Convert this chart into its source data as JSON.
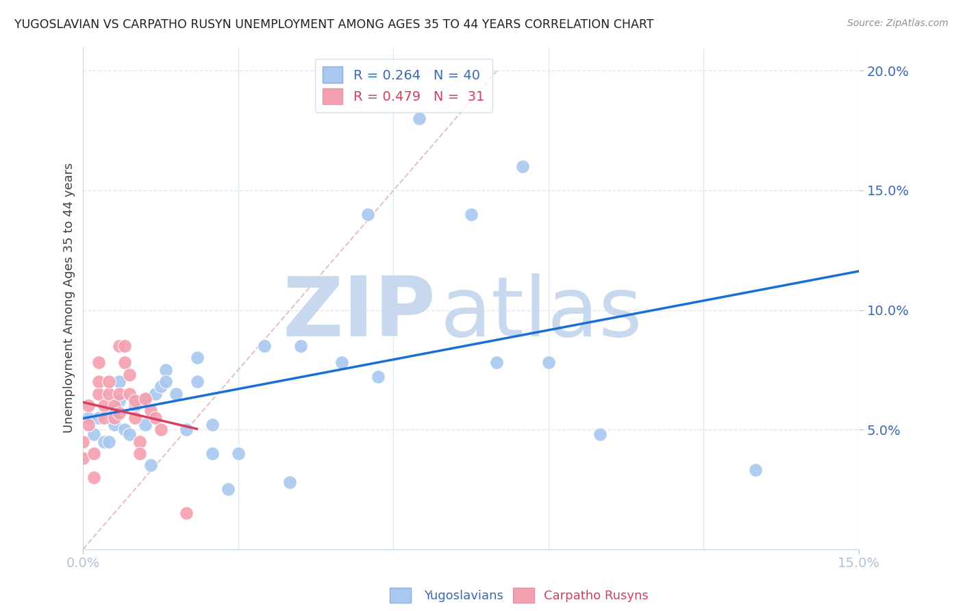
{
  "title": "YUGOSLAVIAN VS CARPATHO RUSYN UNEMPLOYMENT AMONG AGES 35 TO 44 YEARS CORRELATION CHART",
  "source": "Source: ZipAtlas.com",
  "xlabel_label": "Yugoslavians",
  "xlabel_label2": "Carpatho Rusyns",
  "ylabel": "Unemployment Among Ages 35 to 44 years",
  "xlim": [
    0.0,
    0.15
  ],
  "ylim": [
    0.0,
    0.21
  ],
  "xticks": [
    0.0,
    0.15
  ],
  "yticks": [
    0.05,
    0.1,
    0.15,
    0.2
  ],
  "ytick_labels": [
    "5.0%",
    "10.0%",
    "15.0%",
    "20.0%"
  ],
  "xtick_labels": [
    "0.0%",
    "15.0%"
  ],
  "blue_R": 0.264,
  "blue_N": 40,
  "pink_R": 0.479,
  "pink_N": 31,
  "blue_color": "#a8c8f0",
  "pink_color": "#f4a0b0",
  "trend_blue": "#1a6fd4",
  "trend_pink": "#d44060",
  "diag_color": "#e0b0bc",
  "watermark_zip_color": "#c8d8ee",
  "watermark_atlas_color": "#c8d8ee",
  "background_color": "#ffffff",
  "grid_color": "#dde8f0",
  "blue_scatter_x": [
    0.001,
    0.002,
    0.003,
    0.004,
    0.005,
    0.005,
    0.006,
    0.007,
    0.007,
    0.008,
    0.009,
    0.01,
    0.012,
    0.012,
    0.013,
    0.014,
    0.015,
    0.016,
    0.016,
    0.018,
    0.02,
    0.022,
    0.022,
    0.025,
    0.025,
    0.028,
    0.03,
    0.035,
    0.04,
    0.042,
    0.05,
    0.055,
    0.057,
    0.065,
    0.075,
    0.08,
    0.085,
    0.09,
    0.1,
    0.13
  ],
  "blue_scatter_y": [
    0.055,
    0.048,
    0.055,
    0.045,
    0.045,
    0.058,
    0.052,
    0.07,
    0.062,
    0.05,
    0.048,
    0.06,
    0.063,
    0.052,
    0.035,
    0.065,
    0.068,
    0.075,
    0.07,
    0.065,
    0.05,
    0.08,
    0.07,
    0.052,
    0.04,
    0.025,
    0.04,
    0.085,
    0.028,
    0.085,
    0.078,
    0.14,
    0.072,
    0.18,
    0.14,
    0.078,
    0.16,
    0.078,
    0.048,
    0.033
  ],
  "pink_scatter_x": [
    0.0,
    0.0,
    0.001,
    0.001,
    0.002,
    0.002,
    0.003,
    0.003,
    0.003,
    0.004,
    0.004,
    0.005,
    0.005,
    0.006,
    0.006,
    0.007,
    0.007,
    0.007,
    0.008,
    0.008,
    0.009,
    0.009,
    0.01,
    0.01,
    0.011,
    0.011,
    0.012,
    0.013,
    0.014,
    0.015,
    0.02
  ],
  "pink_scatter_y": [
    0.038,
    0.045,
    0.052,
    0.06,
    0.03,
    0.04,
    0.065,
    0.07,
    0.078,
    0.06,
    0.055,
    0.065,
    0.07,
    0.055,
    0.06,
    0.085,
    0.065,
    0.057,
    0.078,
    0.085,
    0.073,
    0.065,
    0.062,
    0.055,
    0.045,
    0.04,
    0.063,
    0.058,
    0.055,
    0.05,
    0.015
  ],
  "grid_xticks": [
    0.0,
    0.03,
    0.06,
    0.09,
    0.12,
    0.15
  ],
  "grid_yticks": [
    0.0,
    0.05,
    0.1,
    0.15,
    0.2
  ]
}
